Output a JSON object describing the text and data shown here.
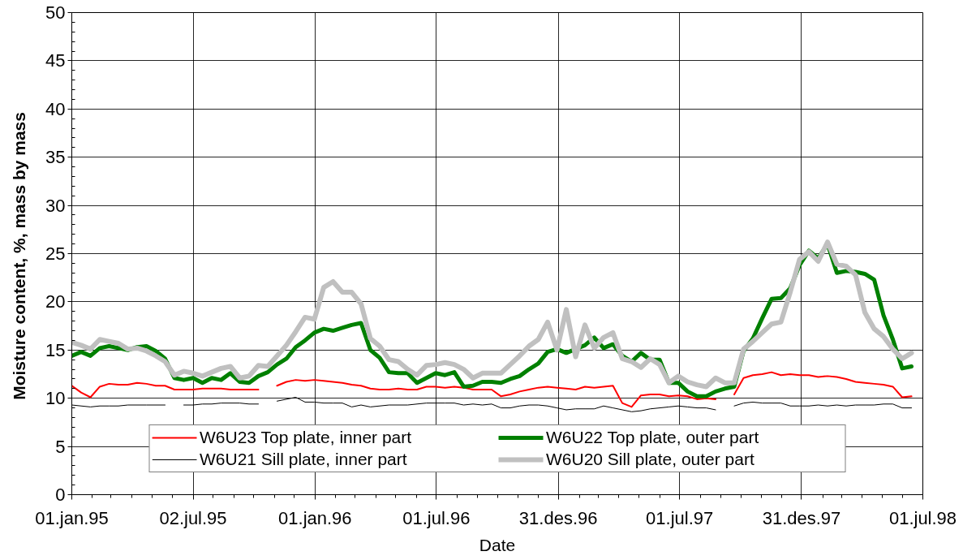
{
  "chart_data": {
    "type": "line",
    "xlabel": "Date",
    "ylabel": "Moisture content, %,  mass by mass",
    "x": [
      "1995-01-01",
      "1995-01-15",
      "1995-01-29",
      "1995-02-12",
      "1995-02-26",
      "1995-03-12",
      "1995-03-26",
      "1995-04-09",
      "1995-04-23",
      "1995-05-07",
      "1995-05-21",
      "1995-06-04",
      "1995-06-18",
      "1995-07-02",
      "1995-07-16",
      "1995-07-30",
      "1995-08-13",
      "1995-08-27",
      "1995-09-10",
      "1995-09-24",
      "1995-10-08",
      "1995-10-22",
      "1995-11-05",
      "1995-11-19",
      "1995-12-03",
      "1995-12-17",
      "1995-12-31",
      "1996-01-14",
      "1996-01-28",
      "1996-02-11",
      "1996-02-25",
      "1996-03-10",
      "1996-03-24",
      "1996-04-07",
      "1996-04-21",
      "1996-05-05",
      "1996-05-19",
      "1996-06-02",
      "1996-06-16",
      "1996-06-30",
      "1996-07-14",
      "1996-07-28",
      "1996-08-11",
      "1996-08-25",
      "1996-09-08",
      "1996-09-22",
      "1996-10-06",
      "1996-10-20",
      "1996-11-03",
      "1996-11-17",
      "1996-12-01",
      "1996-12-15",
      "1996-12-29",
      "1997-01-12",
      "1997-01-26",
      "1997-02-09",
      "1997-02-23",
      "1997-03-09",
      "1997-03-23",
      "1997-04-06",
      "1997-04-20",
      "1997-05-04",
      "1997-05-18",
      "1997-06-01",
      "1997-06-15",
      "1997-06-29",
      "1997-07-13",
      "1997-07-27",
      "1997-08-10",
      "1997-08-24",
      "1997-09-07",
      "1997-09-21",
      "1997-10-05",
      "1997-10-19",
      "1997-11-02",
      "1997-11-16",
      "1997-11-30",
      "1997-12-14",
      "1997-12-28",
      "1998-01-11",
      "1998-01-25",
      "1998-02-08",
      "1998-02-22",
      "1998-03-08",
      "1998-03-22",
      "1998-04-05",
      "1998-04-19",
      "1998-05-03",
      "1998-05-17",
      "1998-05-31",
      "1998-06-14"
    ],
    "xlim": [
      "1995-01-01",
      "1998-07-01"
    ],
    "xticks": [
      {
        "value": "1995-01-01",
        "label": "01.jan.95"
      },
      {
        "value": "1995-02-01",
        "label": null
      },
      {
        "value": "1995-03-01",
        "label": null
      },
      {
        "value": "1995-04-01",
        "label": null
      },
      {
        "value": "1995-05-01",
        "label": null
      },
      {
        "value": "1995-06-01",
        "label": null
      },
      {
        "value": "1995-07-02",
        "label": "02.jul.95"
      },
      {
        "value": "1995-08-01",
        "label": null
      },
      {
        "value": "1995-09-01",
        "label": null
      },
      {
        "value": "1995-10-01",
        "label": null
      },
      {
        "value": "1995-11-01",
        "label": null
      },
      {
        "value": "1995-12-01",
        "label": null
      },
      {
        "value": "1996-01-01",
        "label": "01.jan.96"
      },
      {
        "value": "1996-02-01",
        "label": null
      },
      {
        "value": "1996-03-01",
        "label": null
      },
      {
        "value": "1996-04-01",
        "label": null
      },
      {
        "value": "1996-05-01",
        "label": null
      },
      {
        "value": "1996-06-01",
        "label": null
      },
      {
        "value": "1996-07-01",
        "label": "01.jul.96"
      },
      {
        "value": "1996-08-01",
        "label": null
      },
      {
        "value": "1996-09-01",
        "label": null
      },
      {
        "value": "1996-10-01",
        "label": null
      },
      {
        "value": "1996-11-01",
        "label": null
      },
      {
        "value": "1996-12-01",
        "label": null
      },
      {
        "value": "1996-12-31",
        "label": "31.des.96"
      },
      {
        "value": "1997-02-01",
        "label": null
      },
      {
        "value": "1997-03-01",
        "label": null
      },
      {
        "value": "1997-04-01",
        "label": null
      },
      {
        "value": "1997-05-01",
        "label": null
      },
      {
        "value": "1997-06-01",
        "label": null
      },
      {
        "value": "1997-07-01",
        "label": "01.jul.97"
      },
      {
        "value": "1997-08-01",
        "label": null
      },
      {
        "value": "1997-09-01",
        "label": null
      },
      {
        "value": "1997-10-01",
        "label": null
      },
      {
        "value": "1997-11-01",
        "label": null
      },
      {
        "value": "1997-12-01",
        "label": null
      },
      {
        "value": "1997-12-31",
        "label": "31.des.97"
      },
      {
        "value": "1998-02-01",
        "label": null
      },
      {
        "value": "1998-03-01",
        "label": null
      },
      {
        "value": "1998-04-01",
        "label": null
      },
      {
        "value": "1998-05-01",
        "label": null
      },
      {
        "value": "1998-06-01",
        "label": null
      },
      {
        "value": "1998-07-01",
        "label": "01.jul.98"
      }
    ],
    "ylim": [
      0,
      50
    ],
    "yticks": [
      0,
      {
        "value": 1,
        "label": null
      },
      {
        "value": 2,
        "label": null
      },
      {
        "value": 3,
        "label": null
      },
      {
        "value": 4,
        "label": null
      },
      5,
      {
        "value": 6,
        "label": null
      },
      {
        "value": 7,
        "label": null
      },
      {
        "value": 8,
        "label": null
      },
      {
        "value": 9,
        "label": null
      },
      10,
      {
        "value": 11,
        "label": null
      },
      {
        "value": 12,
        "label": null
      },
      {
        "value": 13,
        "label": null
      },
      {
        "value": 14,
        "label": null
      },
      15,
      {
        "value": 16,
        "label": null
      },
      {
        "value": 17,
        "label": null
      },
      {
        "value": 18,
        "label": null
      },
      {
        "value": 19,
        "label": null
      },
      20,
      {
        "value": 21,
        "label": null
      },
      {
        "value": 22,
        "label": null
      },
      {
        "value": 23,
        "label": null
      },
      {
        "value": 24,
        "label": null
      },
      25,
      {
        "value": 26,
        "label": null
      },
      {
        "value": 27,
        "label": null
      },
      {
        "value": 28,
        "label": null
      },
      {
        "value": 29,
        "label": null
      },
      30,
      {
        "value": 31,
        "label": null
      },
      {
        "value": 32,
        "label": null
      },
      {
        "value": 33,
        "label": null
      },
      {
        "value": 34,
        "label": null
      },
      35,
      {
        "value": 36,
        "label": null
      },
      {
        "value": 37,
        "label": null
      },
      {
        "value": 38,
        "label": null
      },
      {
        "value": 39,
        "label": null
      },
      40,
      {
        "value": 41,
        "label": null
      },
      {
        "value": 42,
        "label": null
      },
      {
        "value": 43,
        "label": null
      },
      {
        "value": 44,
        "label": null
      },
      45,
      {
        "value": 46,
        "label": null
      },
      {
        "value": 47,
        "label": null
      },
      {
        "value": 48,
        "label": null
      },
      {
        "value": 49,
        "label": null
      },
      50
    ],
    "grid": true,
    "legend": "bottom",
    "line_style": "solid",
    "series": [
      {
        "name": "W6U23 Top plate, inner part",
        "color": "#ff0000",
        "values": [
          11.3,
          10.6,
          10.1,
          11.2,
          11.5,
          11.4,
          11.4,
          11.6,
          11.5,
          11.3,
          11.3,
          10.9,
          10.9,
          10.9,
          11.0,
          11.0,
          11.0,
          10.9,
          10.9,
          10.9,
          10.9,
          null,
          11.3,
          11.7,
          11.9,
          11.8,
          11.9,
          11.8,
          11.7,
          11.6,
          11.4,
          11.3,
          11.0,
          10.9,
          10.9,
          11.0,
          10.9,
          10.9,
          11.2,
          11.2,
          11.1,
          11.2,
          11.1,
          10.9,
          10.9,
          10.9,
          10.2,
          10.4,
          10.7,
          10.9,
          11.1,
          11.2,
          11.1,
          11.0,
          10.9,
          11.2,
          11.1,
          11.2,
          11.3,
          9.5,
          9.1,
          10.3,
          10.4,
          10.4,
          10.2,
          10.3,
          10.2,
          9.9,
          10.0,
          9.9,
          null,
          10.4,
          12.1,
          12.4,
          12.5,
          12.7,
          12.4,
          12.5,
          12.4,
          12.4,
          12.2,
          12.3,
          12.2,
          12.0,
          11.7,
          11.6,
          11.5,
          11.4,
          11.2,
          10.1,
          10.2
        ]
      },
      {
        "name": "W6U22 Top plate, outer part",
        "color": "#008000",
        "values": [
          14.4,
          14.8,
          14.4,
          15.2,
          15.4,
          15.2,
          15.0,
          15.3,
          15.4,
          14.9,
          14.1,
          12.1,
          11.9,
          12.1,
          11.6,
          12.1,
          11.9,
          12.6,
          11.7,
          11.6,
          12.3,
          12.7,
          13.5,
          14.1,
          15.3,
          16.0,
          16.8,
          17.2,
          17.0,
          17.3,
          17.6,
          17.8,
          15.0,
          14.2,
          12.7,
          12.6,
          12.6,
          11.6,
          12.1,
          12.6,
          12.4,
          12.7,
          11.2,
          11.3,
          11.7,
          11.7,
          11.6,
          12.0,
          12.3,
          13.0,
          13.6,
          14.8,
          15.1,
          14.7,
          15.1,
          15.5,
          16.3,
          15.2,
          15.6,
          14.4,
          13.8,
          14.7,
          14.0,
          14.0,
          11.6,
          11.6,
          10.7,
          10.2,
          10.2,
          10.7,
          11.0,
          11.2,
          14.9,
          16.2,
          18.3,
          20.3,
          20.4,
          21.4,
          23.8,
          25.3,
          24.5,
          26.0,
          23.0,
          23.2,
          23.1,
          22.9,
          22.3,
          18.6,
          16.1,
          13.1,
          13.3
        ]
      },
      {
        "name": "W6U21 Sill plate, inner part",
        "color": "#000000",
        "values": [
          9.3,
          9.2,
          9.1,
          9.2,
          9.2,
          9.2,
          9.3,
          9.3,
          9.3,
          9.3,
          9.3,
          null,
          9.3,
          9.3,
          9.4,
          9.4,
          9.5,
          9.5,
          9.5,
          9.4,
          9.4,
          null,
          9.7,
          9.9,
          10.1,
          9.6,
          9.6,
          9.5,
          9.5,
          9.5,
          9.1,
          9.3,
          9.1,
          9.2,
          9.3,
          9.3,
          9.3,
          9.4,
          9.5,
          9.5,
          9.5,
          9.5,
          9.3,
          9.4,
          9.3,
          9.4,
          9.0,
          9.0,
          9.2,
          9.3,
          9.3,
          9.2,
          9.0,
          8.8,
          8.9,
          8.9,
          8.9,
          9.2,
          9.0,
          8.8,
          8.6,
          8.7,
          8.9,
          9.0,
          9.1,
          9.2,
          9.1,
          9.0,
          9.0,
          8.8,
          null,
          9.2,
          9.5,
          9.6,
          9.5,
          9.5,
          9.5,
          9.2,
          9.2,
          9.2,
          9.3,
          9.2,
          9.3,
          9.2,
          9.3,
          9.3,
          9.3,
          9.4,
          9.4,
          9.0,
          9.0
        ]
      },
      {
        "name": "W6U20 Sill plate, outer part",
        "color": "#c0c0c0",
        "values": [
          15.8,
          15.5,
          15.1,
          16.1,
          15.9,
          15.7,
          15.1,
          15.2,
          14.9,
          14.4,
          13.8,
          12.4,
          12.8,
          12.6,
          12.3,
          12.7,
          13.1,
          13.3,
          12.1,
          12.3,
          13.4,
          13.3,
          14.4,
          15.5,
          16.9,
          18.4,
          18.2,
          21.5,
          22.1,
          21.0,
          21.0,
          19.8,
          16.2,
          15.4,
          14.0,
          13.8,
          13.0,
          12.4,
          13.4,
          13.5,
          13.7,
          13.5,
          13.0,
          12.1,
          12.6,
          12.6,
          12.6,
          13.5,
          14.4,
          15.4,
          16.1,
          17.9,
          15.0,
          19.2,
          14.3,
          17.6,
          15.2,
          16.3,
          16.8,
          14.1,
          13.8,
          13.2,
          14.1,
          13.5,
          11.6,
          12.3,
          11.7,
          11.4,
          11.2,
          12.1,
          11.6,
          11.6,
          15.1,
          15.9,
          16.8,
          17.7,
          17.9,
          21.0,
          24.4,
          25.2,
          24.2,
          26.2,
          23.9,
          23.7,
          22.8,
          18.9,
          17.2,
          16.4,
          15.1,
          14.1,
          14.7
        ]
      }
    ]
  }
}
